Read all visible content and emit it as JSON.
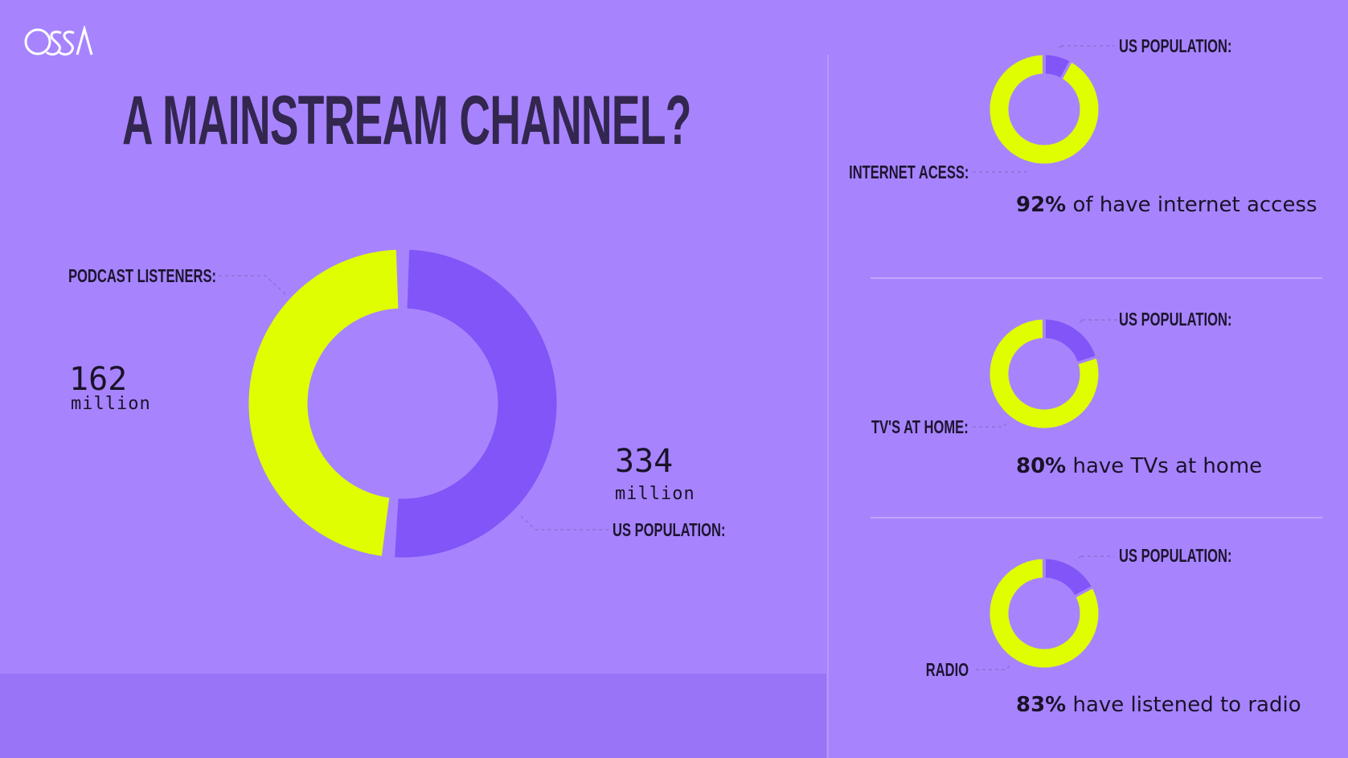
{
  "logo": {
    "text": "OSSA"
  },
  "title": "A MAINSTREAM CHANNEL?",
  "colors": {
    "background": "#a784fe",
    "yellow": "#dfff00",
    "purple": "#8155f7",
    "text": "#1a1228"
  },
  "main_chart": {
    "listeners_label": "PODCAST LISTENERS:",
    "listeners_value": "162",
    "listeners_unit": "million",
    "population_label": "US POPULATION:",
    "population_value": "334",
    "population_unit": "million"
  },
  "small_charts": [
    {
      "top_label": "US POPULATION:",
      "side_label": "INTERNET ACESS:",
      "stat_bold": "92%",
      "stat_text": " of have internet access"
    },
    {
      "top_label": "US POPULATION:",
      "side_label": "TV'S AT HOME:",
      "stat_bold": "80%",
      "stat_text": " have TVs at home"
    },
    {
      "top_label": "US POPULATION:",
      "side_label": "RADIO",
      "stat_bold": "83%",
      "stat_text": " have listened to radio"
    }
  ],
  "chart_data": [
    {
      "type": "pie",
      "categories": [
        "PODCAST LISTENERS",
        "US POPULATION"
      ],
      "values": [
        162,
        334
      ],
      "units": "million"
    },
    {
      "type": "pie",
      "categories": [
        "INTERNET ACESS",
        "US POPULATION"
      ],
      "values": [
        92,
        100
      ],
      "units": "%"
    },
    {
      "type": "pie",
      "categories": [
        "TV'S AT HOME",
        "US POPULATION"
      ],
      "values": [
        80,
        100
      ],
      "units": "%"
    },
    {
      "type": "pie",
      "categories": [
        "RADIO",
        "US POPULATION"
      ],
      "values": [
        83,
        100
      ],
      "units": "%"
    }
  ]
}
